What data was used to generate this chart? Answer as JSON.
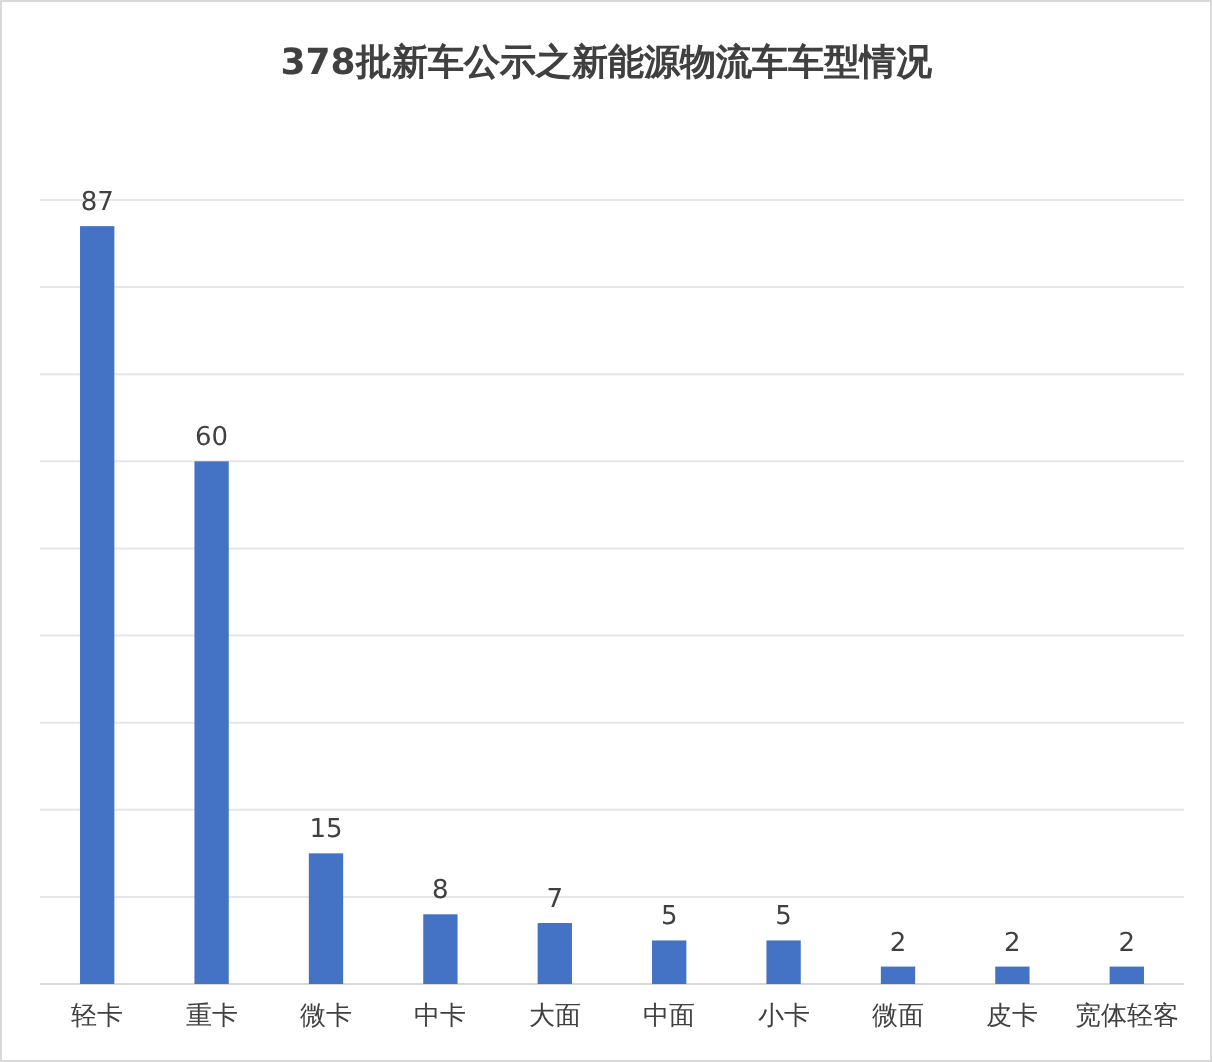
{
  "chart_data": {
    "type": "bar",
    "title": "378批新车公示之新能源物流车车型情况",
    "categories": [
      "轻卡",
      "重卡",
      "微卡",
      "中卡",
      "大面",
      "中面",
      "小卡",
      "微面",
      "皮卡",
      "宽体轻客"
    ],
    "values": [
      87,
      60,
      15,
      8,
      7,
      5,
      5,
      2,
      2,
      2
    ],
    "color": "#4472c4",
    "ylim": [
      0,
      90
    ],
    "yticks": [
      {
        "value": 0,
        "label": null
      },
      {
        "value": 10,
        "label": null
      },
      {
        "value": 20,
        "label": null
      },
      {
        "value": 30,
        "label": null
      },
      {
        "value": 40,
        "label": null
      },
      {
        "value": 50,
        "label": null
      },
      {
        "value": 60,
        "label": null
      },
      {
        "value": 70,
        "label": null
      },
      {
        "value": 80,
        "label": null
      },
      {
        "value": 90,
        "label": null
      }
    ],
    "grid": "y",
    "data_labels": true
  }
}
